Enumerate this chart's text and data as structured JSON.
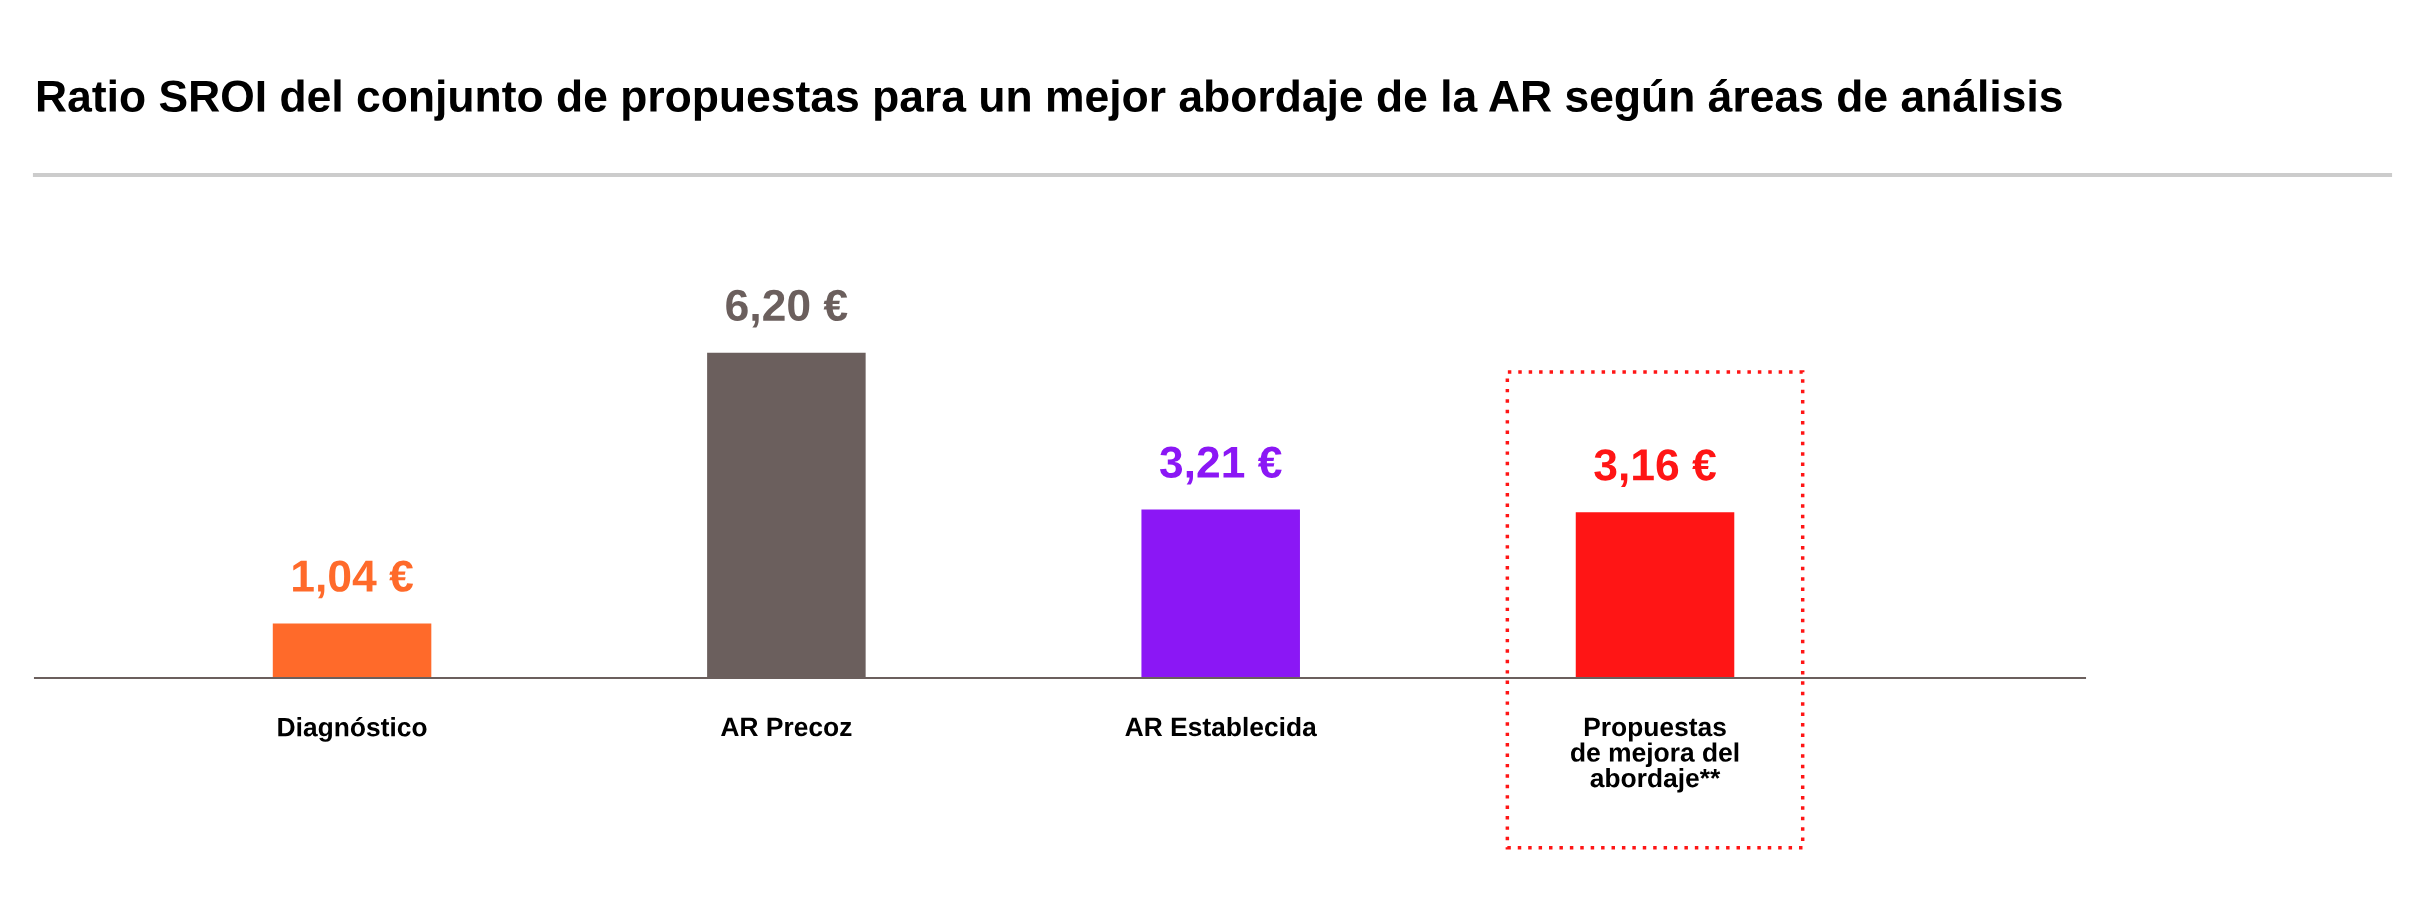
{
  "chart_data": {
    "type": "bar",
    "title": "Ratio SROI del conjunto de propuestas para un mejor abordaje de la AR según áreas de análisis",
    "categories": [
      "Diagnóstico",
      "AR Precoz",
      "AR Establecida",
      "Propuestas\nde mejora del\nabordaje**"
    ],
    "values": [
      1.04,
      6.2,
      3.21,
      3.16
    ],
    "colors": [
      "#ff6a2a",
      "#6b5f5d",
      "#8b17f5",
      "#ff1515"
    ],
    "value_labels": [
      "1,04 €",
      "6,20 €",
      "3,21 €",
      "3,16 €"
    ],
    "grid": false,
    "legend": false
  }
}
